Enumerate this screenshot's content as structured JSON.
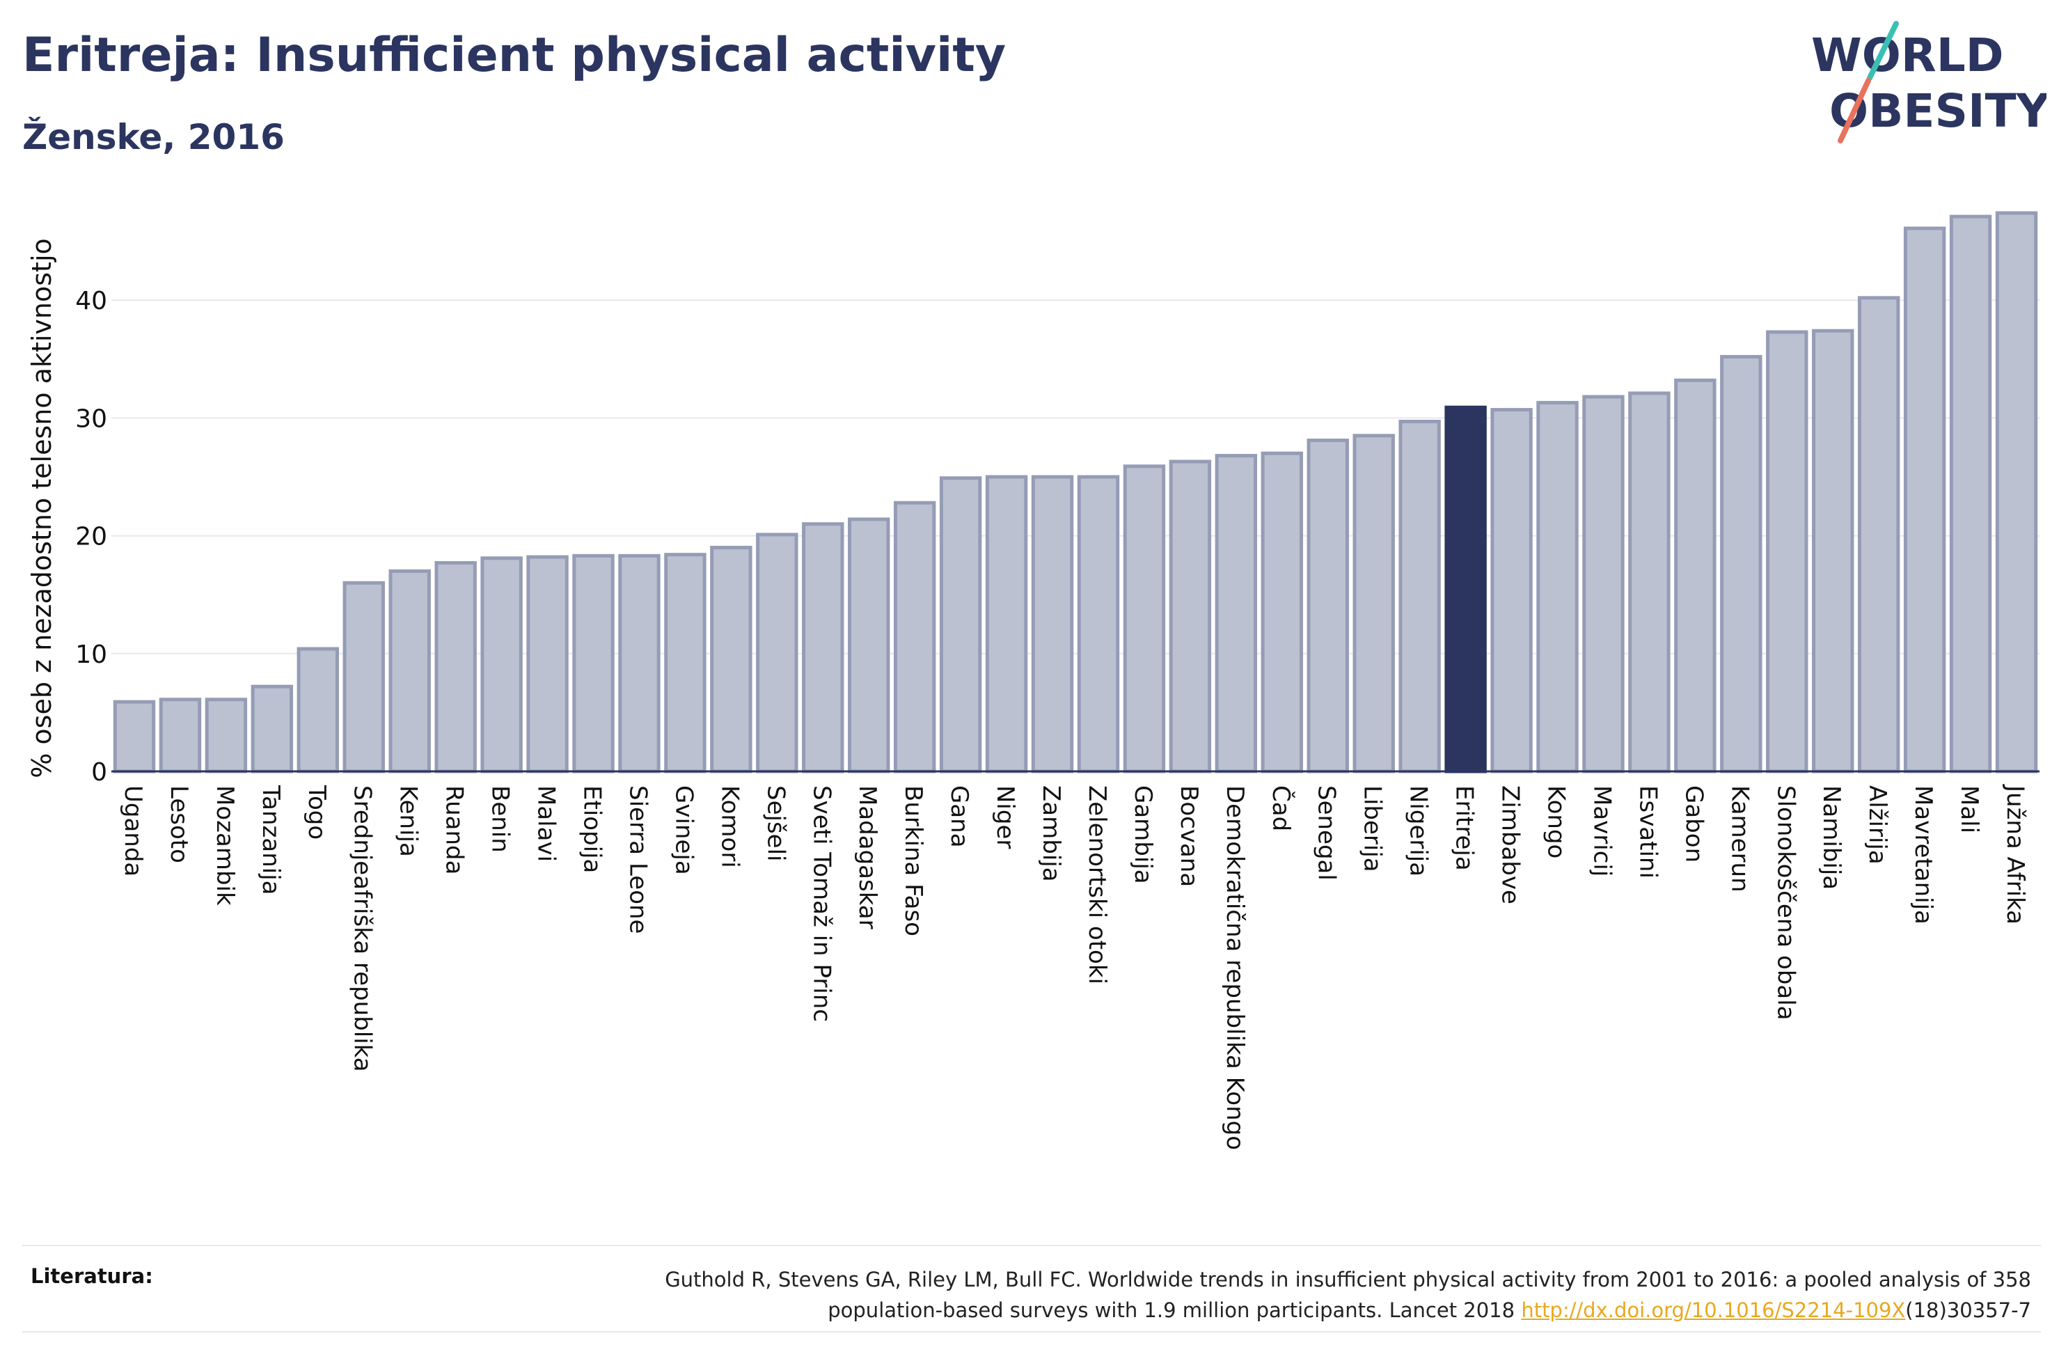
{
  "header": {
    "title": "Eritreja: Insufficient physical activity",
    "subtitle": "Ženske, 2016"
  },
  "logo": {
    "line1": "WORLD",
    "line2": "OBESITY"
  },
  "chart_data": {
    "type": "bar",
    "ylabel": "% oseb z nezadostno telesno aktivnostjo",
    "ylim": [
      0,
      50
    ],
    "yticks": [
      0,
      10,
      20,
      30,
      40
    ],
    "grid": true,
    "highlight": "Eritreja",
    "categories": [
      "Uganda",
      "Lesoto",
      "Mozambik",
      "Tanzanija",
      "Togo",
      "Srednjeafriška republika",
      "Kenija",
      "Ruanda",
      "Benin",
      "Malavi",
      "Etiopija",
      "Sierra Leone",
      "Gvineja",
      "Komori",
      "Sejšeli",
      "Sveti Tomaž in Princ",
      "Madagaskar",
      "Burkina Faso",
      "Gana",
      "Niger",
      "Zambija",
      "Zelenortski otoki",
      "Gambija",
      "Bocvana",
      "Demokratična republika Kongo",
      "Čad",
      "Senegal",
      "Liberija",
      "Nigerija",
      "Eritreja",
      "Zimbabve",
      "Kongo",
      "Mavricij",
      "Esvatini",
      "Gabon",
      "Kamerun",
      "Slonokoščena obala",
      "Namibija",
      "Alžirija",
      "Mavretanija",
      "Mali",
      "Južna Afrika"
    ],
    "values": [
      5.9,
      6.1,
      6.1,
      7.2,
      10.4,
      16.0,
      17.0,
      17.7,
      18.1,
      18.2,
      18.3,
      18.3,
      18.4,
      19.0,
      20.1,
      21.0,
      21.4,
      22.8,
      24.9,
      25.0,
      25.0,
      25.0,
      25.9,
      26.3,
      26.8,
      27.0,
      28.1,
      28.5,
      29.7,
      30.9,
      30.7,
      31.3,
      31.8,
      32.1,
      33.2,
      35.2,
      37.3,
      37.4,
      40.2,
      46.1,
      47.1,
      47.4
    ],
    "colors": {
      "bar": "#bcc1d1",
      "bar_border": "#959cb5",
      "highlight": "#2b3560",
      "grid": "#e8e8ee",
      "axis": "#2b3560"
    }
  },
  "footer": {
    "ref_label": "Literatura:",
    "ref_text_1": "Guthold R, Stevens GA, Riley LM, Bull FC. Worldwide trends in insufficient physical activity from 2001 to 2016: a pooled analysis of 358",
    "ref_text_2": "population-based surveys with 1.9 million participants. Lancet 2018 ",
    "ref_link": "http://dx.doi.org/10.1016/S2214-109X",
    "ref_text_3": "(18)30357-7"
  }
}
